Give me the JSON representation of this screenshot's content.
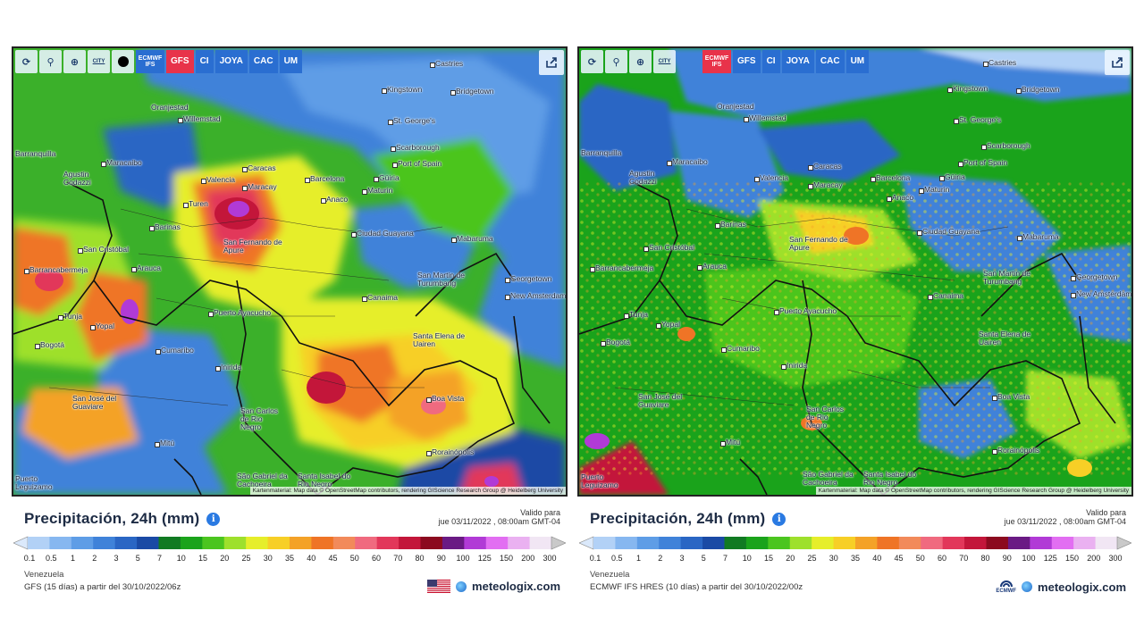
{
  "common": {
    "title": "Precipitación, 24h (mm)",
    "valid_label": "Valido para",
    "valid_date": "jue 03/11/2022 , 08:00am GMT-04",
    "region": "Venezuela",
    "brand": "meteologix.com",
    "attribution": "Kartenmaterial: Map data © OpenStreetMap contributors, rendering GIScience Research Group @ Heidelberg University",
    "scale_ticks": [
      "0.1",
      "0.5",
      "1",
      "2",
      "3",
      "5",
      "7",
      "10",
      "15",
      "20",
      "25",
      "30",
      "35",
      "40",
      "45",
      "50",
      "60",
      "70",
      "80",
      "90",
      "100",
      "125",
      "150",
      "200",
      "300"
    ],
    "scale_colors": [
      "#dbe9fb",
      "#b2d1f6",
      "#86b7f0",
      "#5e9de6",
      "#3f82d9",
      "#2a66c4",
      "#1a4aa5",
      "#117a22",
      "#1aa31b",
      "#4bc51f",
      "#9ee02c",
      "#e6ee2a",
      "#f7cf26",
      "#f4a227",
      "#ef7426",
      "#f28a5a",
      "#f06a7f",
      "#e2375a",
      "#c3163a",
      "#8c0a1f",
      "#6a1a84",
      "#b13ad6",
      "#e26ef2",
      "#eab1f1",
      "#f1e6f4",
      "#c9c9c9"
    ],
    "city_names": [
      "Castries",
      "Kingstown",
      "Bridgetown",
      "Oranjestad",
      "Willemstad",
      "St. George's",
      "Scarborough",
      "Port of Spain",
      "Barranquilla",
      "Maracaibo",
      "Agustin Codazzi",
      "Caracas",
      "Maracay",
      "Valencia",
      "Barcelona",
      "Güiria",
      "Maturin",
      "Anaco",
      "Turen",
      "Barinas",
      "Ciudad Guayana",
      "Mabaruma",
      "San Cristóbal",
      "San Fernando de Apure",
      "Barrancabermeja",
      "Arauca",
      "San Martin de Turumbang",
      "Georgetown",
      "New Amsterdam",
      "Canaima",
      "Puerto Ayacucho",
      "Tunja",
      "Yopal",
      "Bogotá",
      "Santa Elena de Uairen",
      "Cumaribo",
      "Inirida",
      "Boa Vista",
      "San José del Guaviare",
      "San Carlos de Rio Negro",
      "Mitú",
      "Rorainópolis",
      "São Gabriel da Cachoeira",
      "Santa Isabel do Rio Negro",
      "Puerto Leguizamo"
    ]
  },
  "left": {
    "toolbar": {
      "buttons": [
        "refresh-icon",
        "location-pin-icon",
        "zoom-icon",
        "city-toggle",
        "dot-icon"
      ],
      "city_label": "CITY",
      "models": [
        "ECMWF IFS",
        "GFS",
        "CI",
        "JOYA",
        "CAC",
        "UM"
      ],
      "active_model": "GFS"
    },
    "model_line": "GFS (15 días) a partir del 30/10/2022/06z",
    "brand_icon": "us-flag-icon"
  },
  "right": {
    "toolbar": {
      "buttons": [
        "refresh-icon",
        "location-pin-icon",
        "zoom-icon",
        "city-toggle"
      ],
      "city_label": "CITY",
      "models": [
        "ECMWF IFS",
        "GFS",
        "CI",
        "JOYA",
        "CAC",
        "UM"
      ],
      "active_model": "ECMWF IFS"
    },
    "model_line": "ECMWF IFS HRES (10 días) a partir del 30/10/2022/00z",
    "brand_icon": "ecmwf-logo-icon",
    "ecmwf_text": "ECMWF"
  }
}
